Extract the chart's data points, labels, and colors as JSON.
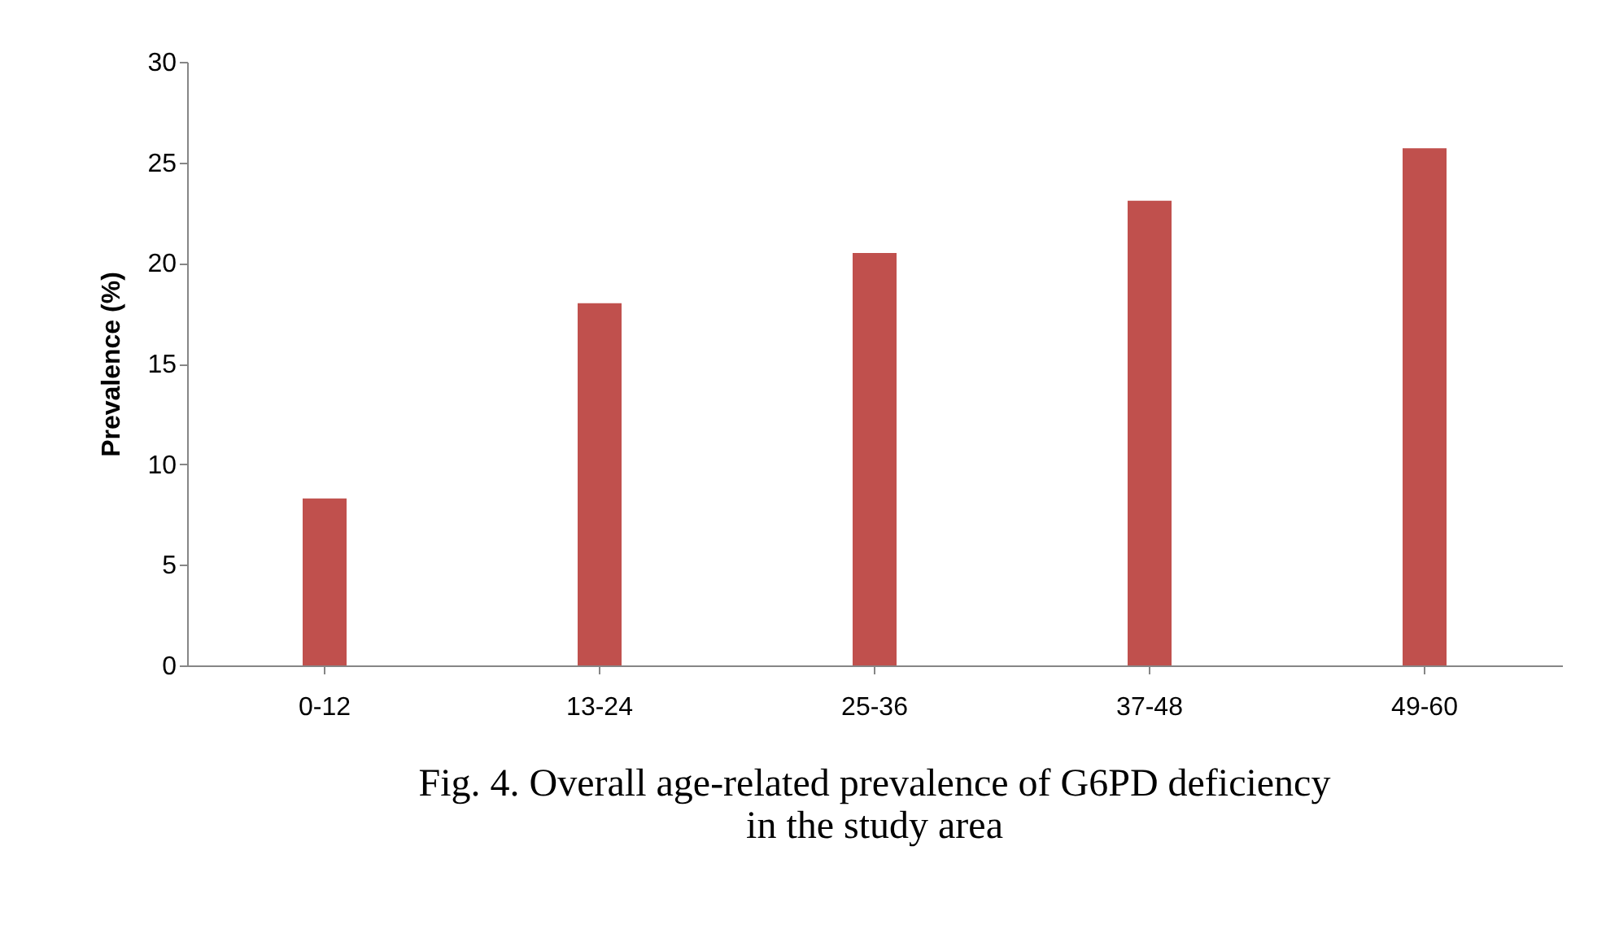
{
  "chart_data": {
    "type": "bar",
    "title": "Fig. 4. Overall age-related prevalence of G6PD deficiency in the study area",
    "ylabel": "Prevalence (%)",
    "categories": [
      "0-12",
      "13-24",
      "25-36",
      "37-48",
      "49-60"
    ],
    "values": [
      8.3,
      18.0,
      20.5,
      23.1,
      25.7
    ],
    "color": "#c0504d",
    "ylim": [
      0,
      30
    ],
    "yticks": [
      0,
      5,
      10,
      15,
      20,
      25,
      30
    ],
    "grid": false
  }
}
